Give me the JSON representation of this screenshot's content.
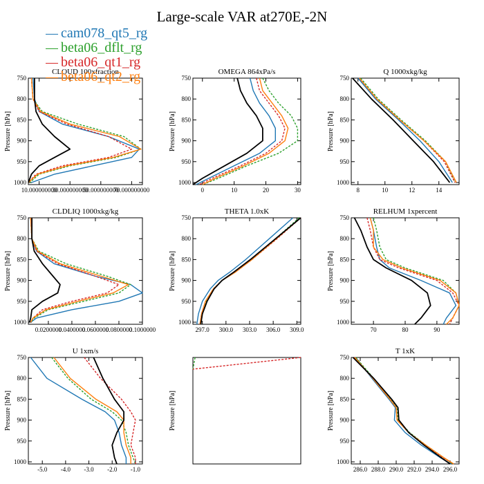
{
  "figure": {
    "title": "Large-scale VAR at270E,-2N",
    "legend": [
      {
        "name": "cam078_qt5_rg",
        "color": "#1f77b4"
      },
      {
        "name": "beta06_dflt_rg",
        "color": "#2ca02c"
      },
      {
        "name": "beta06_qt1_rg",
        "color": "#d62728"
      },
      {
        "name": "beta06_qt2_rg",
        "color": "#ff7f0e"
      }
    ],
    "extra_series_color": "#000000"
  },
  "chart_data": [
    {
      "type": "line",
      "title": "CLOUD 100xfraction",
      "ylabel": "Pressure [hPa]",
      "xlim": [
        3,
        77
      ],
      "ylim": [
        1005,
        750
      ],
      "xticks": [
        10,
        30,
        50,
        70
      ],
      "xtick_labels": [
        "10.000000000",
        "30.000000000",
        "50.000000000",
        "70.000000000"
      ],
      "yticks": [
        750,
        800,
        850,
        900,
        950,
        1000
      ],
      "y": [
        750,
        800,
        830,
        860,
        890,
        920,
        940,
        960,
        980,
        1000
      ],
      "series": [
        {
          "name": "cam078_qt5_rg",
          "x": [
            6,
            7,
            10,
            25,
            55,
            75,
            70,
            45,
            20,
            5
          ]
        },
        {
          "name": "beta06_dflt_rg",
          "x": [
            5,
            6,
            12,
            35,
            65,
            76,
            60,
            30,
            10,
            4
          ]
        },
        {
          "name": "beta06_qt1_rg",
          "x": [
            5,
            6,
            10,
            28,
            55,
            70,
            55,
            25,
            8,
            3
          ]
        },
        {
          "name": "beta06_qt2_rg",
          "x": [
            5,
            6,
            11,
            30,
            62,
            76,
            58,
            28,
            9,
            3
          ]
        },
        {
          "x": [
            7,
            7,
            8,
            12,
            20,
            30,
            20,
            10,
            5,
            3
          ]
        }
      ]
    },
    {
      "type": "line",
      "title": "OMEGA 864xPa/s",
      "ylabel": "Pressure [hPa]",
      "xlim": [
        -3,
        31
      ],
      "ylim": [
        1005,
        750
      ],
      "xticks": [
        0,
        10,
        20,
        30
      ],
      "xtick_labels": [
        "0",
        "10",
        "20",
        "30"
      ],
      "yticks": [
        750,
        800,
        850,
        900,
        950,
        1000
      ],
      "y": [
        750,
        780,
        810,
        840,
        870,
        900,
        930,
        960,
        990,
        1005
      ],
      "series": [
        {
          "name": "cam078_qt5_rg",
          "x": [
            15,
            16,
            18,
            21,
            23,
            23,
            18,
            10,
            2,
            -2
          ]
        },
        {
          "name": "beta06_dflt_rg",
          "x": [
            19,
            21,
            24,
            28,
            30,
            30,
            24,
            14,
            5,
            0
          ]
        },
        {
          "name": "beta06_qt1_rg",
          "x": [
            17,
            18,
            21,
            24,
            26,
            25,
            20,
            12,
            3,
            -1
          ]
        },
        {
          "name": "beta06_qt2_rg",
          "x": [
            18,
            19,
            22,
            25,
            27,
            26,
            21,
            13,
            4,
            0
          ]
        },
        {
          "x": [
            11,
            12,
            14,
            17,
            19,
            19,
            14,
            7,
            0,
            -3
          ]
        }
      ]
    },
    {
      "type": "line",
      "title": "Q 1000xkg/kg",
      "ylabel": "Pressure [hPa]",
      "xlim": [
        7.5,
        15.5
      ],
      "ylim": [
        1005,
        750
      ],
      "xticks": [
        8,
        10,
        12,
        14
      ],
      "xtick_labels": [
        "8",
        "10",
        "12",
        "14"
      ],
      "yticks": [
        750,
        800,
        850,
        900,
        950,
        1000
      ],
      "y": [
        750,
        800,
        850,
        900,
        950,
        1000
      ],
      "series": [
        {
          "name": "cam078_qt5_rg",
          "x": [
            8.0,
            9.3,
            11.0,
            12.6,
            14.0,
            15.0
          ]
        },
        {
          "name": "beta06_dflt_rg",
          "x": [
            8.2,
            9.5,
            11.2,
            13.0,
            14.5,
            15.2
          ]
        },
        {
          "name": "beta06_qt1_rg",
          "x": [
            8.1,
            9.4,
            11.1,
            12.9,
            14.4,
            15.2
          ]
        },
        {
          "name": "beta06_qt2_rg",
          "x": [
            8.1,
            9.4,
            11.1,
            12.9,
            14.5,
            15.3
          ]
        },
        {
          "x": [
            7.6,
            9.0,
            10.6,
            12.1,
            13.6,
            14.8
          ]
        }
      ]
    },
    {
      "type": "line",
      "title": "CLDLIQ 1000xkg/kg",
      "ylabel": "Pressure [hPa]",
      "xlim": [
        0.003,
        0.1
      ],
      "ylim": [
        1005,
        750
      ],
      "xticks": [
        0.02,
        0.04,
        0.06,
        0.08,
        0.1
      ],
      "xtick_labels": [
        "0.0200000",
        "0.0400000",
        "0.0600000",
        "0.0800000",
        "0.1000000"
      ],
      "yticks": [
        750,
        800,
        850,
        900,
        950,
        1000
      ],
      "y": [
        750,
        800,
        830,
        860,
        890,
        910,
        930,
        950,
        970,
        990,
        1000
      ],
      "series": [
        {
          "name": "cam078_qt5_rg",
          "x": [
            0.005,
            0.006,
            0.01,
            0.025,
            0.06,
            0.09,
            0.1,
            0.08,
            0.04,
            0.01,
            0.005
          ]
        },
        {
          "name": "beta06_dflt_rg",
          "x": [
            0.005,
            0.006,
            0.012,
            0.035,
            0.07,
            0.09,
            0.08,
            0.05,
            0.02,
            0.008,
            0.005
          ]
        },
        {
          "name": "beta06_qt1_rg",
          "x": [
            0.005,
            0.006,
            0.01,
            0.028,
            0.06,
            0.08,
            0.07,
            0.04,
            0.015,
            0.007,
            0.005
          ]
        },
        {
          "name": "beta06_qt2_rg",
          "x": [
            0.005,
            0.006,
            0.011,
            0.03,
            0.065,
            0.088,
            0.075,
            0.045,
            0.018,
            0.007,
            0.005
          ]
        },
        {
          "x": [
            0.006,
            0.006,
            0.008,
            0.015,
            0.024,
            0.03,
            0.028,
            0.015,
            0.006,
            0.005,
            0.004
          ]
        }
      ]
    },
    {
      "type": "line",
      "title": "THETA 1.0xK",
      "ylabel": "Pressure [hPa]",
      "xlim": [
        295.8,
        309.5
      ],
      "ylim": [
        1005,
        750
      ],
      "xticks": [
        297,
        300,
        303,
        306,
        309
      ],
      "xtick_labels": [
        "297.0",
        "300.0",
        "303.0",
        "306.0",
        "309.0"
      ],
      "yticks": [
        750,
        800,
        850,
        900,
        950,
        1000
      ],
      "y": [
        750,
        800,
        850,
        880,
        900,
        920,
        950,
        980,
        1005
      ],
      "series": [
        {
          "name": "cam078_qt5_rg",
          "x": [
            308.5,
            305.5,
            302.5,
            300.5,
            299.0,
            298.0,
            297.0,
            296.5,
            296.3
          ]
        },
        {
          "name": "beta06_dflt_rg",
          "x": [
            309.3,
            306.3,
            303.2,
            301.2,
            299.5,
            298.5,
            297.5,
            297.0,
            296.8
          ]
        },
        {
          "name": "beta06_qt1_rg",
          "x": [
            309.5,
            306.5,
            303.3,
            301.2,
            299.5,
            298.4,
            297.4,
            296.9,
            296.7
          ]
        },
        {
          "name": "beta06_qt2_rg",
          "x": [
            309.5,
            306.4,
            303.3,
            301.2,
            299.5,
            298.4,
            297.4,
            296.9,
            296.7
          ]
        },
        {
          "x": [
            309.5,
            306.3,
            303.1,
            301.0,
            299.5,
            298.5,
            297.6,
            297.0,
            296.8
          ]
        }
      ]
    },
    {
      "type": "line",
      "title": "RELHUM 1xpercent",
      "ylabel": "Pressure [hPa]",
      "xlim": [
        63,
        97
      ],
      "ylim": [
        1005,
        750
      ],
      "xticks": [
        70,
        80,
        90
      ],
      "xtick_labels": [
        "70",
        "80",
        "90"
      ],
      "yticks": [
        750,
        800,
        850,
        900,
        950,
        1000
      ],
      "y": [
        750,
        780,
        820,
        850,
        870,
        900,
        930,
        960,
        990,
        1005
      ],
      "series": [
        {
          "name": "cam078_qt5_rg",
          "x": [
            69,
            70,
            71,
            72,
            75,
            85,
            94,
            96,
            93,
            92
          ]
        },
        {
          "name": "beta06_dflt_rg",
          "x": [
            70,
            71,
            72,
            74,
            80,
            92,
            96,
            97,
            95,
            94
          ]
        },
        {
          "name": "beta06_qt1_rg",
          "x": [
            68,
            69,
            70,
            72,
            78,
            90,
            95,
            97,
            95,
            94
          ]
        },
        {
          "name": "beta06_qt2_rg",
          "x": [
            69,
            70,
            70,
            73,
            79,
            91,
            96,
            97,
            95,
            93
          ]
        },
        {
          "x": [
            64,
            66,
            68,
            70,
            74,
            82,
            87,
            88,
            85,
            83
          ]
        }
      ]
    },
    {
      "type": "line",
      "title": "U 1xm/s",
      "ylabel": "Pressure [hPa]",
      "xlim": [
        -5.6,
        -0.7
      ],
      "ylim": [
        1005,
        750
      ],
      "xticks": [
        -5,
        -4,
        -3,
        -2,
        -1
      ],
      "xtick_labels": [
        "-5.0",
        "-4.0",
        "-3.0",
        "-2.0",
        "-1.0"
      ],
      "yticks": [
        750,
        800,
        850,
        900,
        950,
        1000
      ],
      "y": [
        750,
        800,
        850,
        880,
        900,
        930,
        960,
        990,
        1005
      ],
      "series": [
        {
          "name": "cam078_qt5_rg",
          "x": [
            -5.5,
            -4.8,
            -3.3,
            -2.3,
            -1.9,
            -1.7,
            -1.6,
            -1.4,
            -1.4
          ]
        },
        {
          "name": "beta06_dflt_rg",
          "x": [
            -4.6,
            -3.9,
            -2.9,
            -2.0,
            -1.6,
            -1.4,
            -1.3,
            -1.1,
            -1.0
          ]
        },
        {
          "name": "beta06_qt1_rg",
          "x": [
            -3.2,
            -2.5,
            -1.6,
            -1.2,
            -1.0,
            -1.1,
            -1.2,
            -1.0,
            -1.0
          ]
        },
        {
          "name": "beta06_qt2_rg",
          "x": [
            -4.5,
            -3.8,
            -2.7,
            -1.8,
            -1.5,
            -1.5,
            -1.4,
            -1.2,
            -1.2
          ]
        },
        {
          "x": [
            -2.8,
            -2.4,
            -1.9,
            -1.5,
            -1.5,
            -1.8,
            -2.0,
            -1.9,
            -1.8
          ]
        }
      ]
    },
    {
      "type": "line",
      "title": "",
      "ylabel": "Pressure [hPa]",
      "xlim": [
        0,
        1
      ],
      "ylim": [
        1005,
        750
      ],
      "xticks": [],
      "xtick_labels": [],
      "yticks": [],
      "y": [
        750,
        778
      ],
      "series": [
        {
          "name": "beta06_dflt_rg",
          "x": [
            0.02,
            0.0
          ]
        },
        {
          "name": "beta06_qt1_rg",
          "x": [
            1.0,
            0.0
          ]
        }
      ]
    },
    {
      "type": "line",
      "title": "T 1xK",
      "ylabel": "Pressure [hPa]",
      "xlim": [
        285,
        297
      ],
      "ylim": [
        1005,
        750
      ],
      "xticks": [
        286,
        288,
        290,
        292,
        294,
        296
      ],
      "xtick_labels": [
        "286.0",
        "288.0",
        "290.0",
        "292.0",
        "294.0",
        "296.0"
      ],
      "yticks": [
        750,
        800,
        850,
        900,
        950,
        1000
      ],
      "y": [
        750,
        800,
        850,
        870,
        900,
        930,
        960,
        990,
        1005
      ],
      "series": [
        {
          "name": "cam078_qt5_rg",
          "x": [
            285.5,
            287.3,
            289.2,
            289.9,
            289.8,
            291.0,
            292.8,
            294.9,
            296.1
          ]
        },
        {
          "name": "beta06_dflt_rg",
          "x": [
            285.5,
            287.5,
            289.4,
            290.1,
            290.2,
            291.5,
            293.3,
            295.3,
            296.3
          ]
        },
        {
          "name": "beta06_qt1_rg",
          "x": [
            285.3,
            287.4,
            289.3,
            290.0,
            290.1,
            291.4,
            293.2,
            295.2,
            296.4
          ]
        },
        {
          "name": "beta06_qt2_rg",
          "x": [
            285.4,
            287.4,
            289.3,
            290.0,
            290.1,
            291.4,
            293.3,
            295.3,
            296.4
          ]
        },
        {
          "x": [
            285.2,
            287.5,
            289.5,
            290.2,
            290.3,
            291.4,
            293.1,
            295.0,
            296.0
          ]
        }
      ]
    }
  ]
}
